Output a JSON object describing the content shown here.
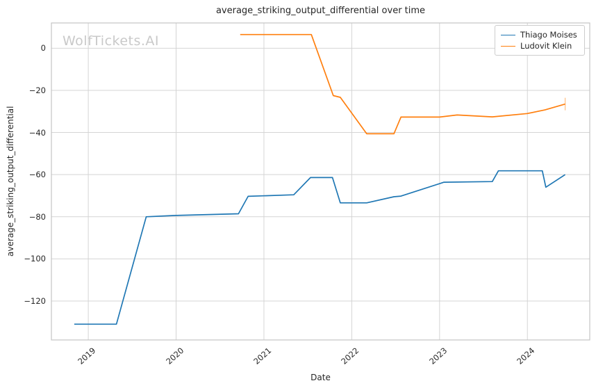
{
  "title": "average_striking_output_differential over time",
  "watermark": "WolfTickets.AI",
  "colors": {
    "series_blue": "#1f77b4",
    "series_orange": "#ff7f0e",
    "grid": "#d4d4d4",
    "axes_border": "#c4c4c4",
    "text": "#262626",
    "watermark": "#c9c9c9",
    "background": "#ffffff"
  },
  "chart_data": {
    "type": "line",
    "title": "average_striking_output_differential over time",
    "xlabel": "Date",
    "ylabel": "average_striking_output_differential",
    "grid": true,
    "legend_position": "upper right",
    "xlim": [
      2018.58,
      2024.71
    ],
    "ylim": [
      -138.5,
      12
    ],
    "x_ticks": [
      {
        "v": 2019,
        "label": "2019"
      },
      {
        "v": 2020,
        "label": "2020"
      },
      {
        "v": 2021,
        "label": "2021"
      },
      {
        "v": 2022,
        "label": "2022"
      },
      {
        "v": 2023,
        "label": "2023"
      },
      {
        "v": 2024,
        "label": "2024"
      }
    ],
    "y_ticks": [
      {
        "v": 0,
        "label": "0"
      },
      {
        "v": -20,
        "label": "−20"
      },
      {
        "v": -40,
        "label": "−40"
      },
      {
        "v": -60,
        "label": "−60"
      },
      {
        "v": -80,
        "label": "−80"
      },
      {
        "v": -100,
        "label": "−100"
      },
      {
        "v": -120,
        "label": "−120"
      }
    ],
    "series": [
      {
        "name": "Thiago Moises",
        "color": "#1f77b4",
        "points": [
          [
            2018.84,
            -131.0
          ],
          [
            2019.32,
            -131.0
          ],
          [
            2019.66,
            -80.0
          ],
          [
            2020.0,
            -79.4
          ],
          [
            2020.71,
            -78.6
          ],
          [
            2020.82,
            -70.3
          ],
          [
            2021.34,
            -69.6
          ],
          [
            2021.53,
            -61.4
          ],
          [
            2021.78,
            -61.4
          ],
          [
            2021.87,
            -73.4
          ],
          [
            2022.17,
            -73.4
          ],
          [
            2022.48,
            -70.5
          ],
          [
            2022.56,
            -70.2
          ],
          [
            2023.05,
            -63.6
          ],
          [
            2023.6,
            -63.3
          ],
          [
            2023.67,
            -58.2
          ],
          [
            2024.17,
            -58.2
          ],
          [
            2024.21,
            -66.0
          ],
          [
            2024.43,
            -60.0
          ]
        ]
      },
      {
        "name": "Ludovit Klein",
        "color": "#ff7f0e",
        "end_tick": true,
        "points": [
          [
            2020.73,
            6.5
          ],
          [
            2021.54,
            6.5
          ],
          [
            2021.79,
            -22.5
          ],
          [
            2021.87,
            -23.3
          ],
          [
            2022.17,
            -40.6
          ],
          [
            2022.48,
            -40.6
          ],
          [
            2022.56,
            -32.7
          ],
          [
            2023.0,
            -32.7
          ],
          [
            2023.2,
            -31.7
          ],
          [
            2023.6,
            -32.6
          ],
          [
            2024.0,
            -31.0
          ],
          [
            2024.2,
            -29.3
          ],
          [
            2024.43,
            -26.5
          ]
        ]
      }
    ]
  }
}
